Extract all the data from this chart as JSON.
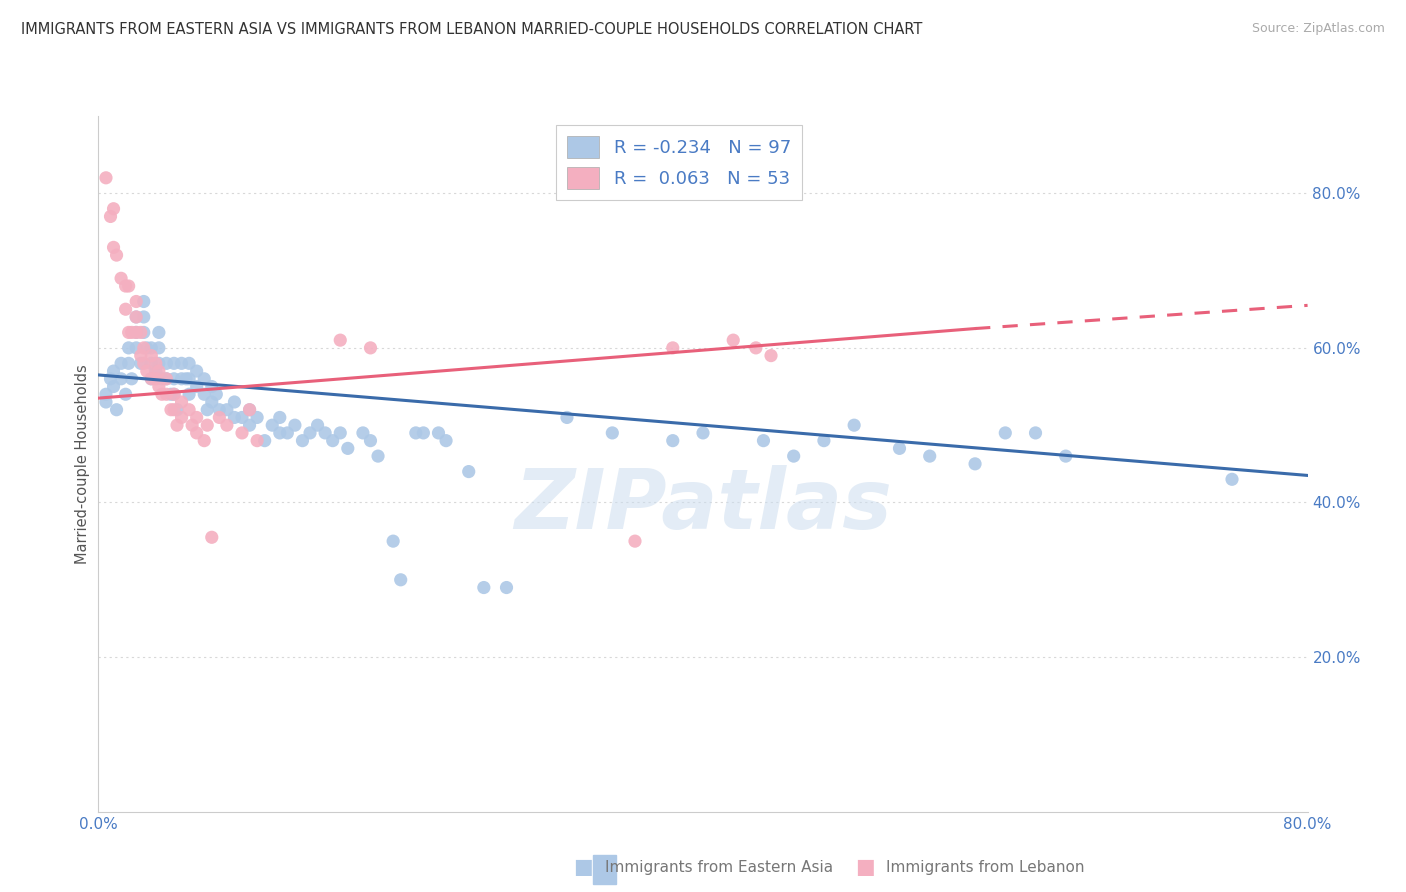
{
  "title": "IMMIGRANTS FROM EASTERN ASIA VS IMMIGRANTS FROM LEBANON MARRIED-COUPLE HOUSEHOLDS CORRELATION CHART",
  "source": "Source: ZipAtlas.com",
  "ylabel": "Married-couple Households",
  "blue_label": "Immigrants from Eastern Asia",
  "pink_label": "Immigrants from Lebanon",
  "blue_R": -0.234,
  "blue_N": 97,
  "pink_R": 0.063,
  "pink_N": 53,
  "blue_color": "#adc8e6",
  "pink_color": "#f4afc0",
  "blue_line_color": "#3a6baa",
  "pink_line_color": "#e8607a",
  "watermark_text": "ZIPatlas",
  "xlim": [
    0.0,
    0.8
  ],
  "ylim": [
    0.0,
    0.9
  ],
  "ytick_vals": [
    0.2,
    0.4,
    0.6,
    0.8
  ],
  "blue_line_x0": 0.0,
  "blue_line_y0": 0.565,
  "blue_line_x1": 0.8,
  "blue_line_y1": 0.435,
  "pink_line_x0": 0.0,
  "pink_line_y0": 0.535,
  "pink_line_x1_solid": 0.58,
  "pink_line_y1_solid": 0.625,
  "pink_line_x1_dash": 0.8,
  "pink_line_y1_dash": 0.655,
  "blue_x": [
    0.005,
    0.005,
    0.008,
    0.01,
    0.01,
    0.012,
    0.015,
    0.015,
    0.018,
    0.02,
    0.02,
    0.022,
    0.025,
    0.025,
    0.025,
    0.028,
    0.03,
    0.03,
    0.03,
    0.032,
    0.035,
    0.035,
    0.035,
    0.038,
    0.04,
    0.04,
    0.04,
    0.042,
    0.045,
    0.045,
    0.048,
    0.05,
    0.05,
    0.05,
    0.052,
    0.055,
    0.055,
    0.058,
    0.06,
    0.06,
    0.06,
    0.065,
    0.065,
    0.07,
    0.07,
    0.072,
    0.075,
    0.075,
    0.078,
    0.08,
    0.085,
    0.09,
    0.09,
    0.095,
    0.1,
    0.1,
    0.105,
    0.11,
    0.115,
    0.12,
    0.12,
    0.125,
    0.13,
    0.135,
    0.14,
    0.145,
    0.15,
    0.155,
    0.16,
    0.165,
    0.175,
    0.18,
    0.185,
    0.195,
    0.2,
    0.21,
    0.215,
    0.225,
    0.23,
    0.245,
    0.255,
    0.27,
    0.31,
    0.34,
    0.38,
    0.4,
    0.44,
    0.46,
    0.48,
    0.5,
    0.53,
    0.55,
    0.58,
    0.6,
    0.62,
    0.64,
    0.75
  ],
  "blue_y": [
    0.54,
    0.53,
    0.56,
    0.57,
    0.55,
    0.52,
    0.58,
    0.56,
    0.54,
    0.6,
    0.58,
    0.56,
    0.64,
    0.62,
    0.6,
    0.58,
    0.66,
    0.64,
    0.62,
    0.6,
    0.6,
    0.58,
    0.56,
    0.57,
    0.62,
    0.6,
    0.58,
    0.56,
    0.58,
    0.56,
    0.54,
    0.58,
    0.56,
    0.54,
    0.52,
    0.58,
    0.56,
    0.56,
    0.58,
    0.56,
    0.54,
    0.57,
    0.55,
    0.56,
    0.54,
    0.52,
    0.55,
    0.53,
    0.54,
    0.52,
    0.52,
    0.51,
    0.53,
    0.51,
    0.52,
    0.5,
    0.51,
    0.48,
    0.5,
    0.51,
    0.49,
    0.49,
    0.5,
    0.48,
    0.49,
    0.5,
    0.49,
    0.48,
    0.49,
    0.47,
    0.49,
    0.48,
    0.46,
    0.35,
    0.3,
    0.49,
    0.49,
    0.49,
    0.48,
    0.44,
    0.29,
    0.29,
    0.51,
    0.49,
    0.48,
    0.49,
    0.48,
    0.46,
    0.48,
    0.5,
    0.47,
    0.46,
    0.45,
    0.49,
    0.49,
    0.46,
    0.43
  ],
  "pink_x": [
    0.005,
    0.008,
    0.01,
    0.01,
    0.012,
    0.015,
    0.018,
    0.018,
    0.02,
    0.02,
    0.022,
    0.025,
    0.025,
    0.025,
    0.028,
    0.028,
    0.03,
    0.03,
    0.032,
    0.035,
    0.035,
    0.038,
    0.038,
    0.04,
    0.04,
    0.042,
    0.045,
    0.045,
    0.048,
    0.05,
    0.05,
    0.052,
    0.055,
    0.055,
    0.06,
    0.062,
    0.065,
    0.065,
    0.07,
    0.072,
    0.075,
    0.08,
    0.085,
    0.095,
    0.1,
    0.105,
    0.16,
    0.18,
    0.355,
    0.38,
    0.42,
    0.435,
    0.445
  ],
  "pink_y": [
    0.82,
    0.77,
    0.78,
    0.73,
    0.72,
    0.69,
    0.68,
    0.65,
    0.68,
    0.62,
    0.62,
    0.66,
    0.64,
    0.62,
    0.62,
    0.59,
    0.6,
    0.58,
    0.57,
    0.59,
    0.56,
    0.58,
    0.56,
    0.57,
    0.55,
    0.54,
    0.56,
    0.54,
    0.52,
    0.54,
    0.52,
    0.5,
    0.53,
    0.51,
    0.52,
    0.5,
    0.51,
    0.49,
    0.48,
    0.5,
    0.355,
    0.51,
    0.5,
    0.49,
    0.52,
    0.48,
    0.61,
    0.6,
    0.35,
    0.6,
    0.61,
    0.6,
    0.59
  ],
  "background_color": "#ffffff",
  "grid_color": "#d8d8d8"
}
